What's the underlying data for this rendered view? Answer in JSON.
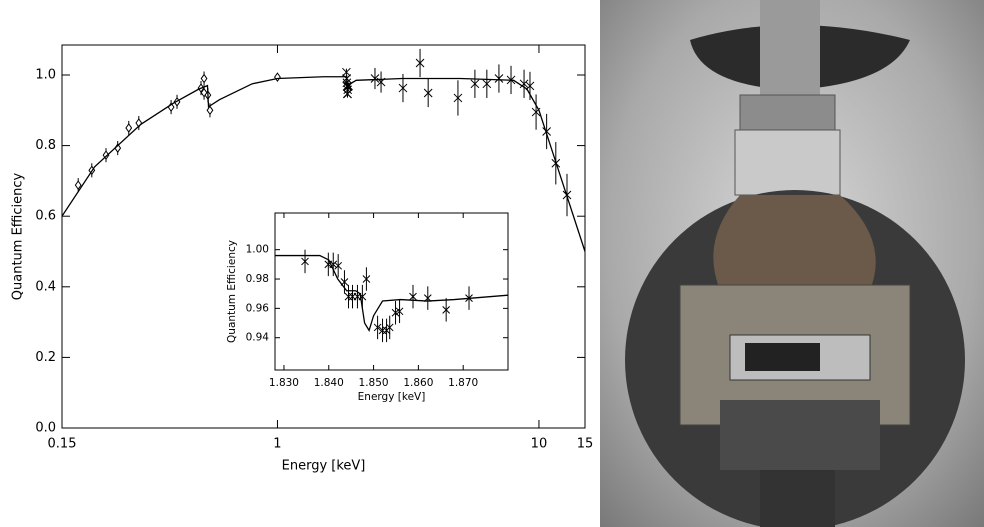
{
  "chart_data": [
    {
      "type": "scatter",
      "xscale": "log",
      "xlabel": "Energy [keV]",
      "ylabel": "Quantum Efficiency",
      "xlim": [
        0.15,
        15
      ],
      "ylim": [
        0,
        1.085
      ],
      "xticks": [
        0.15,
        1,
        10,
        15
      ],
      "yticks": [
        {
          "value": 0,
          "label": "0.0"
        },
        0.2,
        0.4,
        0.6,
        0.8,
        {
          "value": 1,
          "label": "1.0"
        }
      ],
      "series": [
        {
          "marker": "diamond",
          "color": "#000000",
          "x": [
            0.173,
            0.195,
            0.221,
            0.245,
            0.27,
            0.295,
            0.392,
            0.413,
            0.51,
            0.524,
            0.524,
            0.542,
            0.552,
            1.0
          ],
          "values": [
            0.688,
            0.73,
            0.773,
            0.793,
            0.85,
            0.864,
            0.909,
            0.924,
            0.963,
            0.99,
            0.95,
            0.943,
            0.9,
            0.994
          ],
          "errors": [
            0.02,
            0.02,
            0.02,
            0.02,
            0.02,
            0.02,
            0.02,
            0.02,
            0.02,
            0.02,
            0.02,
            0.02,
            0.02,
            0.01
          ]
        },
        {
          "marker": "cross",
          "color": "#000000",
          "x": [
            1.835,
            1.84,
            1.843,
            1.845,
            1.848,
            1.851,
            1.853,
            1.856,
            1.862,
            1.871,
            2.36,
            2.49,
            3.02,
            3.51,
            3.77,
            4.9,
            5.69,
            6.32,
            7.03,
            7.82,
            8.77,
            9.24,
            9.75,
            10.7,
            11.6,
            12.8
          ],
          "values": [
            1.008,
            0.99,
            0.978,
            0.968,
            0.968,
            0.947,
            0.946,
            0.958,
            0.967,
            0.969,
            0.99,
            0.98,
            0.963,
            1.034,
            0.949,
            0.935,
            0.975,
            0.975,
            0.99,
            0.986,
            0.975,
            0.969,
            0.895,
            0.84,
            0.75,
            0.66
          ],
          "errors": [
            0.01,
            0.01,
            0.01,
            0.01,
            0.01,
            0.01,
            0.01,
            0.01,
            0.01,
            0.01,
            0.03,
            0.03,
            0.04,
            0.04,
            0.04,
            0.05,
            0.04,
            0.04,
            0.04,
            0.04,
            0.04,
            0.04,
            0.05,
            0.05,
            0.06,
            0.06
          ]
        },
        {
          "marker": "none",
          "line": true,
          "color": "#000000",
          "x": [
            0.15,
            0.2,
            0.3,
            0.4,
            0.5,
            0.54,
            0.545,
            0.6,
            0.8,
            1,
            1.5,
            1.84,
            1.85,
            2,
            3,
            5,
            8,
            9,
            10,
            12,
            15
          ],
          "values": [
            0.6,
            0.74,
            0.86,
            0.92,
            0.96,
            0.97,
            0.91,
            0.93,
            0.975,
            0.99,
            0.995,
            0.995,
            0.97,
            0.985,
            0.99,
            0.99,
            0.985,
            0.96,
            0.9,
            0.72,
            0.5
          ]
        }
      ]
    },
    {
      "type": "scatter",
      "xscale": "linear",
      "xlabel": "Energy [keV]",
      "ylabel": "Quantum Efficiency",
      "xlim": [
        1.828,
        1.88
      ],
      "ylim": [
        0.918,
        1.025
      ],
      "xticks": [
        {
          "value": 1.83,
          "label": "1.830"
        },
        {
          "value": 1.84,
          "label": "1.840"
        },
        {
          "value": 1.85,
          "label": "1.850"
        },
        {
          "value": 1.86,
          "label": "1.860"
        },
        {
          "value": 1.87,
          "label": "1.870"
        }
      ],
      "yticks": [
        0.94,
        0.96,
        0.98,
        {
          "value": 1,
          "label": "1.00"
        }
      ],
      "series": [
        {
          "marker": "cross",
          "color": "#000000",
          "x": [
            1.8347,
            1.8399,
            1.841,
            1.8421,
            1.8435,
            1.8444,
            1.8453,
            1.8464,
            1.8475,
            1.8484,
            1.8509,
            1.852,
            1.8529,
            1.8536,
            1.8549,
            1.8558,
            1.8588,
            1.8621,
            1.8662,
            1.8713
          ],
          "values": [
            0.992,
            0.99,
            0.99,
            0.989,
            0.978,
            0.968,
            0.968,
            0.968,
            0.968,
            0.98,
            0.947,
            0.945,
            0.945,
            0.947,
            0.957,
            0.958,
            0.968,
            0.967,
            0.959,
            0.967
          ],
          "errors": [
            0.008,
            0.008,
            0.008,
            0.008,
            0.008,
            0.008,
            0.008,
            0.008,
            0.008,
            0.008,
            0.008,
            0.008,
            0.008,
            0.008,
            0.008,
            0.008,
            0.008,
            0.008,
            0.008,
            0.008
          ]
        },
        {
          "marker": "none",
          "line": true,
          "color": "#000000",
          "x": [
            1.828,
            1.838,
            1.84,
            1.842,
            1.844,
            1.846,
            1.847,
            1.848,
            1.849,
            1.85,
            1.852,
            1.856,
            1.862,
            1.868,
            1.88
          ],
          "values": [
            0.996,
            0.996,
            0.993,
            0.98,
            0.972,
            0.972,
            0.97,
            0.95,
            0.945,
            0.955,
            0.965,
            0.966,
            0.965,
            0.966,
            0.969
          ]
        }
      ]
    }
  ]
}
